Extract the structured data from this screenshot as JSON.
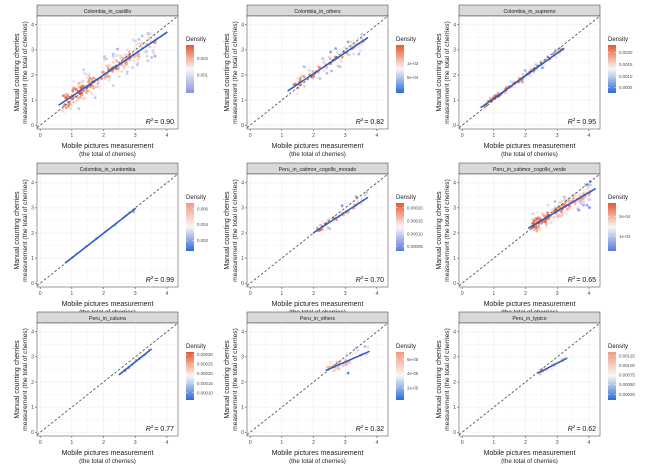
{
  "chart_data": [
    {
      "type": "scatter",
      "title": "Colombia_in_castillo",
      "r2_label": "R",
      "r2_value": "= 0.90",
      "slope": 0.85,
      "intercept": 0.3,
      "x_range": [
        0.6,
        4.0
      ],
      "x_data": [
        0.7,
        3.7
      ],
      "n": 260,
      "spread": 0.28,
      "legend_title": "Density",
      "legend_ticks": [
        "0.002",
        "0.001"
      ],
      "legend_tick_pos": [
        0.72,
        0.38
      ],
      "legend_colors": [
        "#e8582f",
        "#f7f7f7",
        "#8a95e0"
      ]
    },
    {
      "type": "scatter",
      "title": "Colombia_in_others",
      "r2_label": "R",
      "r2_value": "= 0.82",
      "slope": 0.84,
      "intercept": 0.37,
      "x_range": [
        1.2,
        3.7
      ],
      "x_data": [
        1.3,
        3.6
      ],
      "n": 90,
      "spread": 0.2,
      "legend_title": "Density",
      "legend_ticks": [
        "1e-03",
        "5e-04"
      ],
      "legend_tick_pos": [
        0.62,
        0.32
      ],
      "legend_colors": [
        "#e8582f",
        "#f7f7f7",
        "#2d6bd6"
      ]
    },
    {
      "type": "scatter",
      "title": "Colombia_in_supremo",
      "r2_label": "R",
      "r2_value": "= 0.95",
      "slope": 0.9,
      "intercept": 0.17,
      "x_range": [
        0.6,
        3.2
      ],
      "x_data": [
        0.7,
        3.2
      ],
      "n": 120,
      "spread": 0.09,
      "legend_title": "Density",
      "legend_ticks": [
        "0.0020",
        "0.0015",
        "0.0010",
        "0.0005"
      ],
      "legend_tick_pos": [
        0.85,
        0.6,
        0.35,
        0.12
      ],
      "legend_colors": [
        "#e8582f",
        "#f7f7f7",
        "#2d6bd6"
      ]
    },
    {
      "type": "scatter",
      "title": "Colombia_in_vuotombia",
      "r2_label": "R",
      "r2_value": "= 0.99",
      "slope": 0.98,
      "intercept": 0.03,
      "x_range": [
        0.8,
        3.0
      ],
      "x_data": [
        0.8,
        3.0
      ],
      "n": 12,
      "spread": 0.05,
      "legend_title": "Density",
      "legend_ticks": [
        "0.006",
        "0.004",
        "0.002"
      ],
      "legend_tick_pos": [
        0.88,
        0.55,
        0.22
      ],
      "legend_colors": [
        "#f29a80",
        "#f7f7f7",
        "#2d6bd6"
      ]
    },
    {
      "type": "scatter",
      "title": "Peru_in_catimor_cogollo_morado",
      "r2_label": "R",
      "r2_value": "= 0.70",
      "slope": 0.82,
      "intercept": 0.37,
      "x_range": [
        2.0,
        3.7
      ],
      "x_data": [
        2.0,
        3.7
      ],
      "n": 40,
      "spread": 0.12,
      "legend_title": "Density",
      "legend_ticks": [
        "0.00020",
        "0.00015",
        "0.00010",
        "0.00005"
      ],
      "legend_tick_pos": [
        0.9,
        0.63,
        0.36,
        0.1
      ],
      "legend_colors": [
        "#e8582f",
        "#f7f7f7",
        "#5b78dd"
      ]
    },
    {
      "type": "scatter",
      "title": "Peru_in_catimor_cogollo_verde",
      "r2_label": "R",
      "r2_value": "= 0.65",
      "slope": 0.74,
      "intercept": 0.65,
      "x_range": [
        2.1,
        4.2
      ],
      "x_data": [
        2.2,
        4.1
      ],
      "n": 200,
      "spread": 0.22,
      "legend_title": "Density",
      "legend_ticks": [
        "2e-04",
        "1e-04"
      ],
      "legend_tick_pos": [
        0.72,
        0.3
      ],
      "legend_colors": [
        "#e8582f",
        "#f7f7f7",
        "#5b78dd"
      ]
    },
    {
      "type": "scatter",
      "title": "Peru_in_caturra",
      "r2_label": "R",
      "r2_value": "= 0.77",
      "slope": 1.0,
      "intercept": -0.2,
      "x_range": [
        2.5,
        3.5
      ],
      "x_data": [
        2.5,
        3.5
      ],
      "n": 10,
      "spread": 0.08,
      "legend_title": "Density",
      "legend_ticks": [
        "0.00030",
        "0.00025",
        "0.00020",
        "0.00015",
        "0.00010"
      ],
      "legend_tick_pos": [
        0.95,
        0.75,
        0.55,
        0.35,
        0.15
      ],
      "legend_colors": [
        "#e8582f",
        "#f7f7f7",
        "#2d6bd6"
      ]
    },
    {
      "type": "scatter",
      "title": "Peru_in_others",
      "r2_label": "R",
      "r2_value": "= 0.32",
      "slope": 0.55,
      "intercept": 1.15,
      "x_range": [
        2.4,
        3.75
      ],
      "x_data": [
        2.4,
        3.75
      ],
      "n": 45,
      "spread": 0.18,
      "legend_title": "Density",
      "legend_ticks": [
        "6e-05",
        "4e-05",
        "2e-05"
      ],
      "legend_tick_pos": [
        0.85,
        0.55,
        0.25
      ],
      "legend_colors": [
        "#f29a80",
        "#f7f7f7",
        "#2d6bd6"
      ]
    },
    {
      "type": "scatter",
      "title": "Peru_in_typico",
      "r2_label": "R",
      "r2_value": "= 0.62",
      "slope": 0.65,
      "intercept": 0.8,
      "x_range": [
        2.4,
        3.3
      ],
      "x_data": [
        2.4,
        3.3
      ],
      "n": 18,
      "spread": 0.1,
      "legend_title": "Density",
      "legend_ticks": [
        "0.00125",
        "0.00100",
        "0.00075",
        "0.00050",
        "0.00025"
      ],
      "legend_tick_pos": [
        0.92,
        0.72,
        0.52,
        0.32,
        0.12
      ],
      "legend_colors": [
        "#f29a80",
        "#f7f7f7",
        "#2d6bd6"
      ]
    }
  ],
  "axes": {
    "xlabel_line1": "Mobile pictures measurement",
    "xlabel_line2": "(the total of cherries)",
    "ylabel_line1": "Manual counting cherries",
    "ylabel_line2": "measurement (the total of cherries)",
    "ticks": [
      "0",
      "1",
      "2",
      "3",
      "4"
    ],
    "xlim": [
      -0.1,
      4.35
    ],
    "ylim": [
      -0.15,
      4.35
    ]
  }
}
